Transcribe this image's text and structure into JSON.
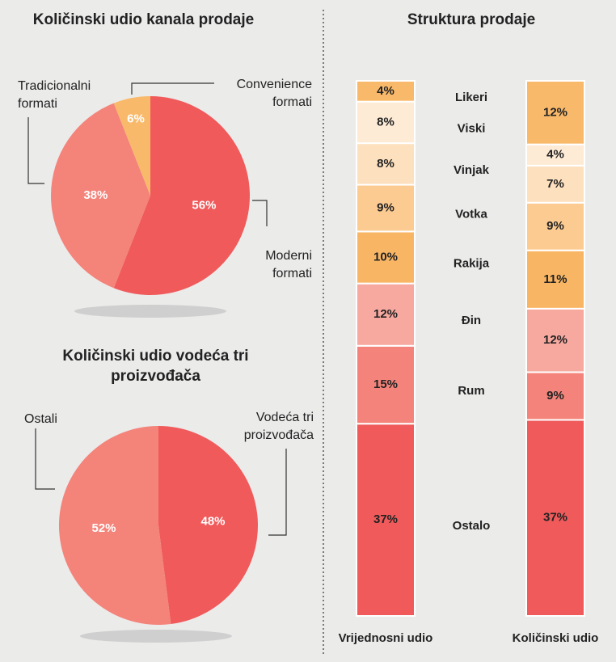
{
  "chart_data": [
    {
      "type": "pie",
      "title": "Količinski udio kanala prodaje",
      "categories": [
        "Moderni formati",
        "Tradicionalni formati",
        "Convenience formati"
      ],
      "values": [
        56,
        38,
        6
      ],
      "value_labels": [
        "56%",
        "38%",
        "6%"
      ],
      "colors": [
        "#f05a5b",
        "#f4837a",
        "#f9b96a"
      ]
    },
    {
      "type": "pie",
      "title": "Količinski udio vodeća tri proizvođača",
      "categories": [
        "Vodeća tri proizvođača",
        "Ostali"
      ],
      "values": [
        48,
        52
      ],
      "value_labels": [
        "48%",
        "52%"
      ],
      "colors": [
        "#f05a5b",
        "#f4837a"
      ]
    },
    {
      "type": "stacked_bar",
      "title": "Struktura prodaje",
      "categories": [
        "Vrijednosni udio",
        "Količinski udio"
      ],
      "series": [
        {
          "name": "Likeri",
          "color": "#f9b96a",
          "values": [
            4,
            12
          ],
          "value_labels": [
            "4%",
            "12%"
          ]
        },
        {
          "name": "Viski",
          "color": "#fdebd6",
          "values": [
            8,
            4
          ],
          "value_labels": [
            "8%",
            "4%"
          ]
        },
        {
          "name": "Vinjak",
          "color": "#fde0bd",
          "values": [
            8,
            7
          ],
          "value_labels": [
            "8%",
            "7%"
          ]
        },
        {
          "name": "Votka",
          "color": "#fbcb92",
          "values": [
            9,
            9
          ],
          "value_labels": [
            "9%",
            "9%"
          ]
        },
        {
          "name": "Rakija",
          "color": "#f8b665",
          "values": [
            10,
            11
          ],
          "value_labels": [
            "10%",
            "11%"
          ]
        },
        {
          "name": "Đin",
          "color": "#f7a9a0",
          "values": [
            12,
            12
          ],
          "value_labels": [
            "12%",
            "12%"
          ]
        },
        {
          "name": "Rum",
          "color": "#f4847b",
          "values": [
            15,
            9
          ],
          "value_labels": [
            "15%",
            "9%"
          ]
        },
        {
          "name": "Ostalo",
          "color": "#f05a5b",
          "values": [
            37,
            37
          ],
          "value_labels": [
            "37%",
            "37%"
          ]
        }
      ]
    }
  ]
}
